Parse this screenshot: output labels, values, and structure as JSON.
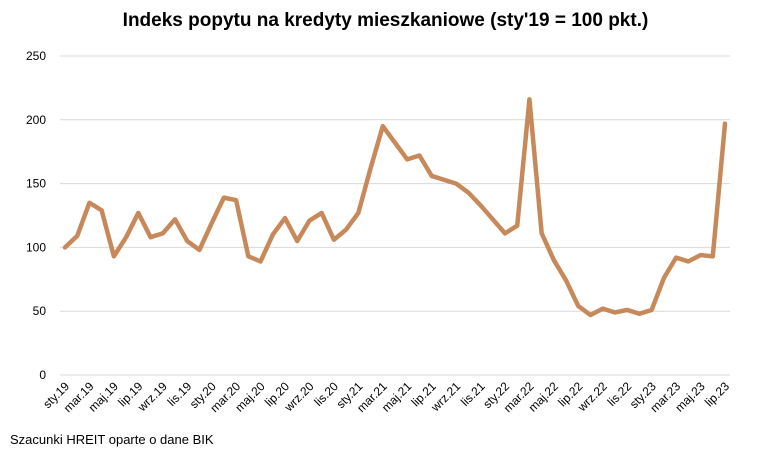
{
  "chart_data": {
    "type": "line",
    "title": "Indeks popytu na kredyty mieszkaniowe (sty'19 = 100 pkt.)",
    "source_note": "Szacunki HREIT oparte o dane BIK",
    "xlabel": "",
    "ylabel": "",
    "ylim": [
      0,
      250
    ],
    "yticks": [
      0,
      50,
      100,
      150,
      200,
      250
    ],
    "grid": true,
    "legend": "none",
    "line_color": "#C8895A",
    "grid_color": "#D9D9D9",
    "x": [
      "sty.19",
      "lut.19",
      "mar.19",
      "kwi.19",
      "maj.19",
      "cze.19",
      "lip.19",
      "sie.19",
      "wrz.19",
      "paź.19",
      "lis.19",
      "gru.19",
      "sty.20",
      "lut.20",
      "mar.20",
      "kwi.20",
      "maj.20",
      "cze.20",
      "lip.20",
      "sie.20",
      "wrz.20",
      "paź.20",
      "lis.20",
      "gru.20",
      "sty.21",
      "lut.21",
      "mar.21",
      "kwi.21",
      "maj.21",
      "cze.21",
      "lip.21",
      "sie.21",
      "wrz.21",
      "paź.21",
      "lis.21",
      "gru.21",
      "sty.22",
      "lut.22",
      "mar.22",
      "kwi.22",
      "maj.22",
      "cze.22",
      "lip.22",
      "sie.22",
      "wrz.22",
      "paź.22",
      "lis.22",
      "gru.22",
      "sty.23",
      "lut.23",
      "mar.23",
      "kwi.23",
      "maj.23",
      "cze.23",
      "lip.23"
    ],
    "xtick_labels": [
      "sty.19",
      "mar.19",
      "maj.19",
      "lip.19",
      "wrz.19",
      "lis.19",
      "sty.20",
      "mar.20",
      "maj.20",
      "lip.20",
      "wrz.20",
      "lis.20",
      "sty.21",
      "mar.21",
      "maj.21",
      "lip.21",
      "wrz.21",
      "lis.21",
      "sty.22",
      "mar.22",
      "maj.22",
      "lip.22",
      "wrz.22",
      "lis.22",
      "sty.23",
      "mar.23",
      "maj.23",
      "lip.23"
    ],
    "series": [
      {
        "name": "",
        "values": [
          100,
          109,
          135,
          129,
          93,
          108,
          127,
          108,
          111,
          122,
          105,
          98,
          119,
          139,
          137,
          93,
          89,
          110,
          123,
          105,
          121,
          127,
          106,
          114,
          127,
          162,
          195,
          182,
          169,
          172,
          156,
          153,
          150,
          143,
          133,
          122,
          111,
          117,
          216,
          111,
          90,
          74,
          54,
          47,
          52,
          49,
          51,
          48,
          51,
          76,
          92,
          89,
          94,
          93,
          197
        ]
      }
    ]
  }
}
